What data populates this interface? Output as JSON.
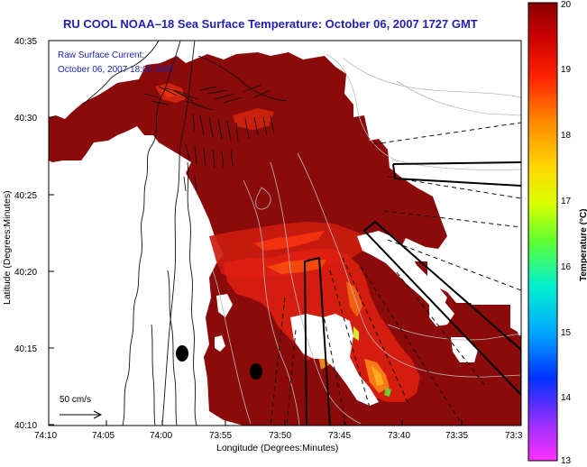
{
  "title": "RU COOL  NOAA–18  Sea Surface Temperature:  October 06, 2007 1727 GMT",
  "annotation": {
    "line1": "Raw Surface Current:",
    "line2": "October 06, 2007 18:00 GMT"
  },
  "scale_label": "50 cm/s",
  "axes": {
    "xlabel": "Longitude (Degrees:Minutes)",
    "ylabel": "Latitude (Degrees:Minutes)",
    "xticks": [
      "74:10",
      "74:05",
      "74:00",
      "73:55",
      "73:50",
      "73:45",
      "73:40",
      "73:35",
      "73:3"
    ],
    "yticks": [
      "40:35",
      "40:30",
      "40:25",
      "40:20",
      "40:15",
      "40:10"
    ]
  },
  "colorbar": {
    "label": "Temperature (°C)",
    "ticks": [
      "20",
      "19",
      "18",
      "17",
      "16",
      "15",
      "14",
      "13"
    ],
    "min": 13,
    "max": 20
  },
  "colors": {
    "sst_high": "#8b0a0a",
    "sst_mid": "#cc1c10",
    "title_blue": "#1f1fb0"
  }
}
